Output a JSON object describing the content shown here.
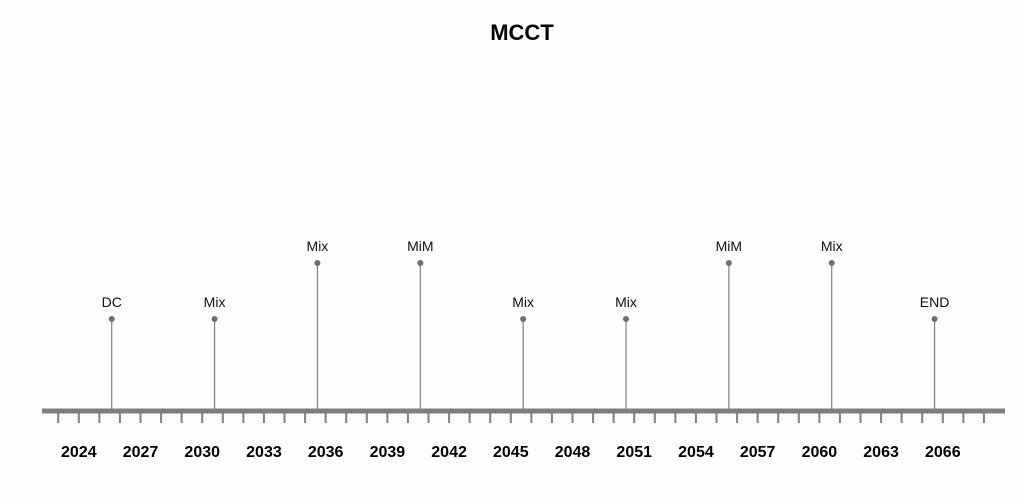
{
  "chart_data": {
    "type": "timeline",
    "title": "MCCT",
    "x_range": [
      2022,
      2069
    ],
    "tick_years": [
      2024,
      2027,
      2030,
      2033,
      2036,
      2039,
      2042,
      2045,
      2048,
      2051,
      2054,
      2057,
      2060,
      2063,
      2066
    ],
    "minor_tick_step": 1,
    "events": [
      {
        "year": 2025.6,
        "label": "DC",
        "level": 1
      },
      {
        "year": 2030.6,
        "label": "Mix",
        "level": 1
      },
      {
        "year": 2035.6,
        "label": "Mix",
        "level": 2
      },
      {
        "year": 2040.6,
        "label": "MiM",
        "level": 2
      },
      {
        "year": 2045.6,
        "label": "Mix",
        "level": 1
      },
      {
        "year": 2050.6,
        "label": "Mix",
        "level": 1
      },
      {
        "year": 2055.6,
        "label": "MiM",
        "level": 2
      },
      {
        "year": 2060.6,
        "label": "Mix",
        "level": 2
      },
      {
        "year": 2065.6,
        "label": "END",
        "level": 1
      }
    ],
    "colors": {
      "axis": "#7f7f7f",
      "stem": "#7f7f7f",
      "marker": "#6f6f6f",
      "text": "#000000"
    }
  }
}
